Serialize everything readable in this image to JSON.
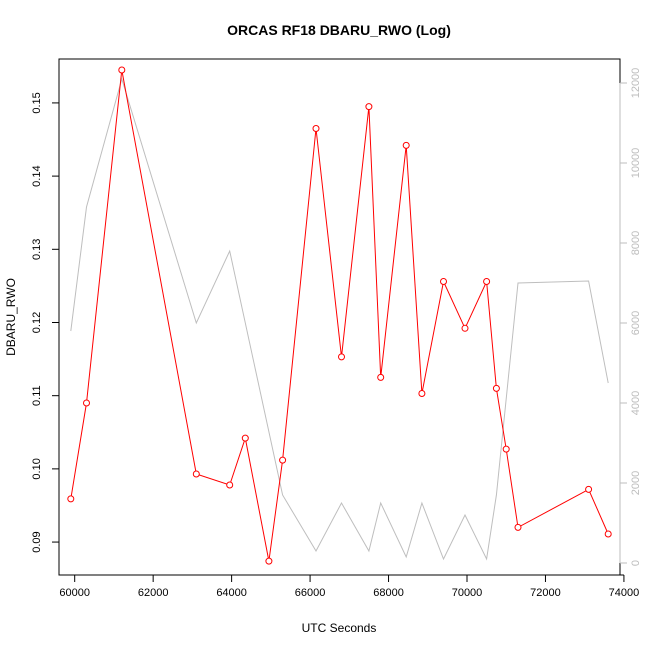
{
  "chart_data": {
    "type": "line",
    "title": "ORCAS RF18 DBARU_RWO (Log)",
    "xlabel": "UTC Seconds",
    "ylabel": "DBARU_RWO",
    "xlim": [
      59600,
      73900
    ],
    "ylim": [
      0.0855,
      0.156
    ],
    "y2lim": [
      -300,
      12600
    ],
    "x_ticks": [
      60000,
      62000,
      64000,
      66000,
      68000,
      70000,
      72000,
      74000
    ],
    "y_ticks": [
      0.09,
      0.1,
      0.11,
      0.12,
      0.13,
      0.14,
      0.15
    ],
    "y2_ticks": [
      0,
      2000,
      4000,
      6000,
      8000,
      10000,
      12000
    ],
    "colors": {
      "primary": "#ff0000",
      "secondary": "#bebebe"
    },
    "series": [
      {
        "axis": "left",
        "marker": "open-circle",
        "x": [
          59900,
          60300,
          61200,
          63100,
          63950,
          64350,
          64950,
          65300,
          66150,
          66800,
          67500,
          67800,
          68450,
          68850,
          69400,
          69950,
          70500,
          70750,
          71000,
          71300,
          73100,
          73600
        ],
        "y": [
          0.0959,
          0.109,
          0.1545,
          0.0993,
          0.0978,
          0.1042,
          0.0874,
          0.1012,
          0.1465,
          0.1153,
          0.1495,
          0.1125,
          0.1442,
          0.1103,
          0.1256,
          0.1192,
          0.1256,
          0.111,
          0.1027,
          0.092,
          0.0972,
          0.0911
        ]
      },
      {
        "axis": "right",
        "marker": "none",
        "x": [
          59900,
          60300,
          61200,
          63100,
          63950,
          65300,
          66150,
          66800,
          67500,
          67800,
          68450,
          68850,
          69400,
          69950,
          70500,
          70750,
          71300,
          73100,
          73600
        ],
        "y": [
          5800,
          8900,
          12100,
          6000,
          7800,
          1700,
          300,
          1500,
          300,
          1500,
          150,
          1500,
          100,
          1200,
          100,
          1700,
          7000,
          7050,
          4500
        ]
      }
    ]
  }
}
